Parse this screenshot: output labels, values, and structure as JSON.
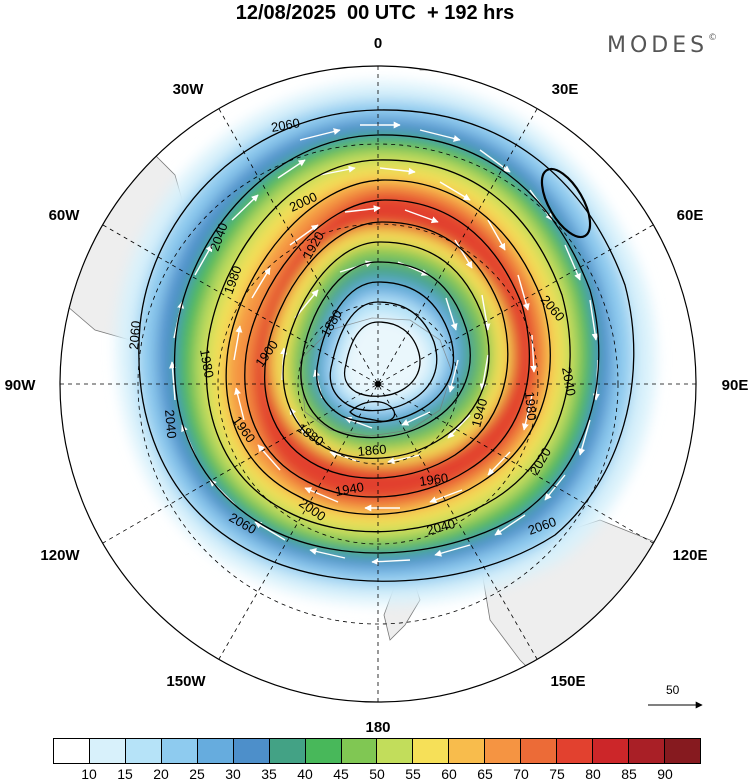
{
  "title": "12/08/2025  00 UTC  + 192 hrs",
  "brand": {
    "name": "MODES",
    "mark": "©"
  },
  "longitude_labels": [
    "0",
    "30E",
    "60E",
    "90E",
    "120E",
    "150E",
    "180",
    "150W",
    "120W",
    "90W",
    "60W",
    "30W"
  ],
  "contour_labels": [
    "2060",
    "2040",
    "2000",
    "1980",
    "1960",
    "1940",
    "1920",
    "1900",
    "1880",
    "1860",
    "2020"
  ],
  "reference_vector": "50",
  "colorbar": {
    "colors": [
      "#ffffff",
      "#d8f1fb",
      "#b6e3f8",
      "#8ecbef",
      "#66acde",
      "#4d8fca",
      "#43a285",
      "#48b85a",
      "#80c753",
      "#c2dd5b",
      "#f6e058",
      "#f8bc4c",
      "#f59442",
      "#ec6b37",
      "#e2412f",
      "#cc2629",
      "#a91f26",
      "#861a1f"
    ],
    "tick_labels": [
      "10",
      "15",
      "20",
      "25",
      "30",
      "35",
      "40",
      "45",
      "50",
      "55",
      "60",
      "65",
      "70",
      "75",
      "80",
      "85",
      "90"
    ]
  },
  "colors": {
    "land": "#eeeeee",
    "coast": "#777777",
    "contour": "#000000"
  }
}
